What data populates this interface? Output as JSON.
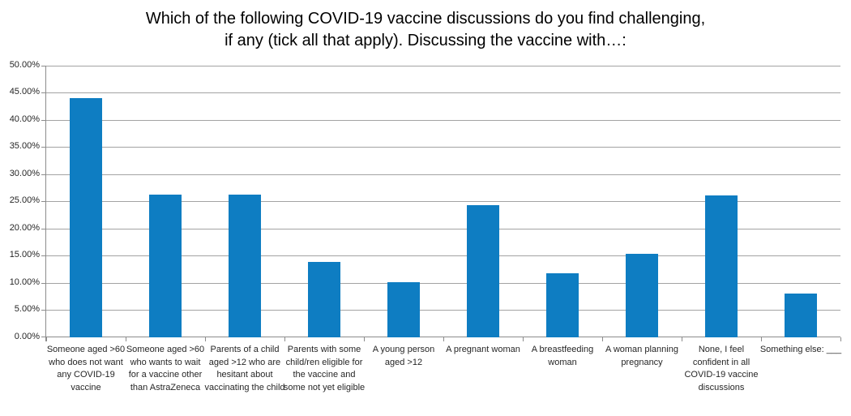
{
  "chart_data": {
    "type": "bar",
    "title_lines": [
      "Which of the following COVID-19 vaccine discussions do you find challenging,",
      "if any (tick all that apply). Discussing the vaccine with…:"
    ],
    "categories": [
      "Someone aged >60 who does not want any COVID-19 vaccine",
      "Someone aged >60 who wants to wait for a vaccine other than AstraZeneca",
      "Parents of a child aged >12 who are hesitant about vaccinating the child",
      "Parents with some child/ren eligible for the vaccine and some not yet eligible",
      "A young person aged >12",
      "A pregnant woman",
      "A breastfeeding woman",
      "A woman planning pregnancy",
      "None, I feel confident in all COVID-19 vaccine discussions",
      "Something else: ___"
    ],
    "values": [
      44.0,
      26.3,
      26.3,
      13.9,
      10.2,
      24.3,
      11.8,
      15.4,
      26.1,
      8.1
    ],
    "value_unit": "%",
    "xlabel": "",
    "ylabel": "",
    "ylim": [
      0,
      50
    ],
    "ytick_step": 5,
    "ytick_labels": [
      "0.00%",
      "5.00%",
      "10.00%",
      "15.00%",
      "20.00%",
      "25.00%",
      "30.00%",
      "35.00%",
      "40.00%",
      "45.00%",
      "50.00%"
    ],
    "grid": true,
    "legend_position": "none",
    "bar_color": "#0E7DC2",
    "gridline_color": "#A3A3A3",
    "axis_color": "#8C8C8C",
    "text_color": "#262626",
    "title_color": "#000000"
  }
}
